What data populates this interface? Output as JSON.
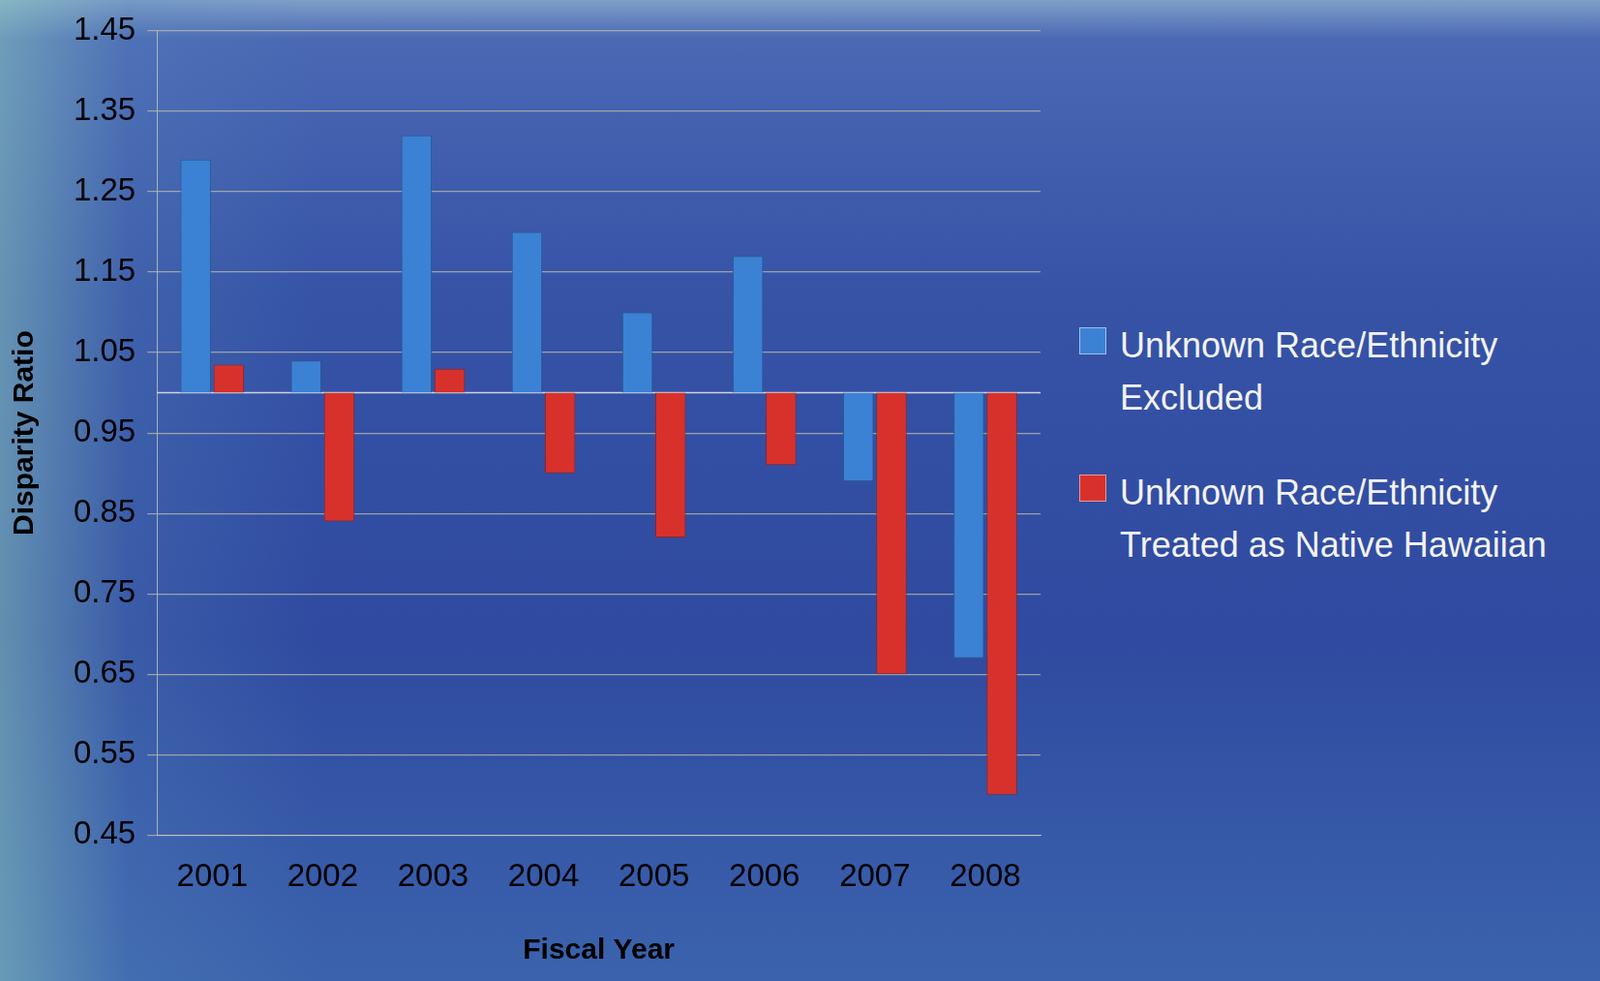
{
  "chart_data": {
    "type": "bar",
    "x_label": "Fiscal Year",
    "y_label": "Disparity Ratio",
    "categories": [
      "2001",
      "2002",
      "2003",
      "2004",
      "2005",
      "2006",
      "2007",
      "2008"
    ],
    "baseline": 1,
    "series": [
      {
        "name": "Unknown Race/Ethnicity Excluded",
        "color": "#3b82d4",
        "values": [
          1.29,
          1.04,
          1.32,
          1.2,
          1.1,
          1.17,
          0.89,
          0.67
        ]
      },
      {
        "name": "Unknown Race/Ethnicity Treated as Native Hawaiian",
        "color": "#d8312c",
        "values": [
          1.035,
          0.84,
          1.03,
          0.9,
          0.82,
          0.91,
          0.65,
          0.5
        ]
      }
    ],
    "ylim": [
      0.45,
      1.45
    ],
    "yticks": [
      0.45,
      0.55,
      0.65,
      0.75,
      0.85,
      0.95,
      1.05,
      1.15,
      1.25,
      1.35,
      1.45
    ],
    "grid": true,
    "legend": "right"
  }
}
